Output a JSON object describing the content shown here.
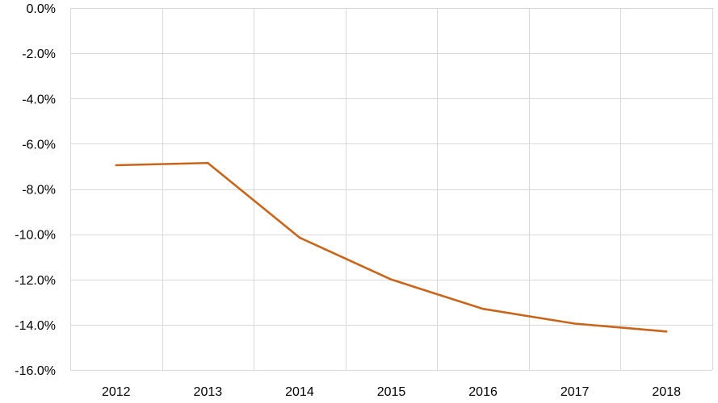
{
  "chart_data": {
    "type": "line",
    "title": "",
    "xlabel": "",
    "ylabel": "",
    "categories": [
      "2012",
      "2013",
      "2014",
      "2015",
      "2016",
      "2017",
      "2018"
    ],
    "series": [
      {
        "values": [
          -6.95,
          -6.85,
          -10.15,
          -12.0,
          -13.3,
          -13.95,
          -14.3
        ],
        "color": "#c8651b"
      }
    ],
    "ylim": [
      -16.0,
      0.0
    ],
    "y_ticks": [
      0.0,
      -2.0,
      -4.0,
      -6.0,
      -8.0,
      -10.0,
      -12.0,
      -14.0,
      -16.0
    ],
    "y_tick_labels": [
      "0.0%",
      "-2.0%",
      "-4.0%",
      "-6.0%",
      "-8.0%",
      "-10.0%",
      "-12.0%",
      "-14.0%",
      "-16.0%"
    ],
    "grid": true,
    "legend": "none",
    "colors": {
      "gridline": "#d9d9d9",
      "text": "#000000",
      "background": "#ffffff"
    }
  }
}
